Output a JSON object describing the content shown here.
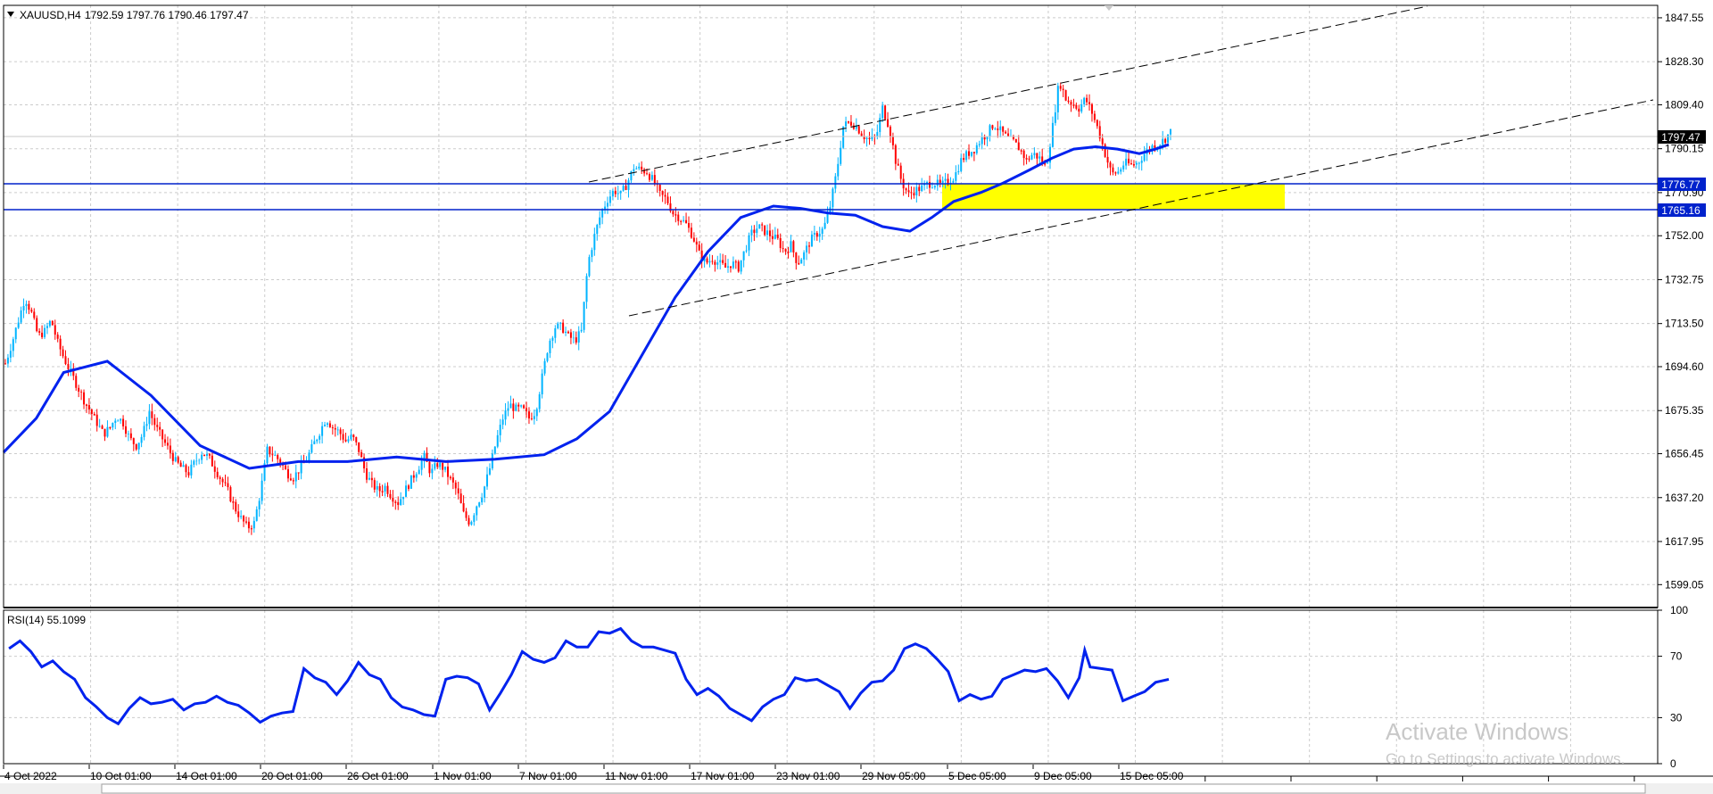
{
  "chart_data": [
    {
      "type": "candlestick",
      "symbol_label": "XAUUSD,H4",
      "ohlc_label": "1792.59 1797.76 1790.46 1797.47",
      "ylim": [
        1589,
        1853
      ],
      "y_ticks": [
        "1847.55",
        "1828.30",
        "1809.40",
        "1790.15",
        "1770.90",
        "1752.00",
        "1732.75",
        "1713.50",
        "1694.60",
        "1675.35",
        "1656.45",
        "1637.20",
        "1617.95",
        "1599.05"
      ],
      "x_ticks": [
        "4 Oct 2022",
        "10 Oct 01:00",
        "14 Oct 01:00",
        "20 Oct 01:00",
        "26 Oct 01:00",
        "1 Nov 01:00",
        "7 Nov 01:00",
        "11 Nov 01:00",
        "17 Nov 01:00",
        "23 Nov 01:00",
        "29 Nov 05:00",
        "5 Dec 05:00",
        "9 Dec 05:00",
        "15 Dec 05:00"
      ],
      "bars_total": 360,
      "price_path": [
        [
          0,
          1696
        ],
        [
          3,
          1705
        ],
        [
          6,
          1715
        ],
        [
          9,
          1725
        ],
        [
          12,
          1718
        ],
        [
          15,
          1708
        ],
        [
          18,
          1710
        ],
        [
          21,
          1715
        ],
        [
          24,
          1705
        ],
        [
          27,
          1698
        ],
        [
          30,
          1692
        ],
        [
          33,
          1686
        ],
        [
          36,
          1680
        ],
        [
          39,
          1675
        ],
        [
          42,
          1670
        ],
        [
          45,
          1665
        ],
        [
          48,
          1668
        ],
        [
          51,
          1673
        ],
        [
          54,
          1670
        ],
        [
          57,
          1663
        ],
        [
          60,
          1660
        ],
        [
          63,
          1665
        ],
        [
          66,
          1675
        ],
        [
          69,
          1668
        ],
        [
          72,
          1663
        ],
        [
          75,
          1658
        ],
        [
          78,
          1653
        ],
        [
          81,
          1650
        ],
        [
          84,
          1648
        ],
        [
          87,
          1653
        ],
        [
          90,
          1657
        ],
        [
          93,
          1655
        ],
        [
          96,
          1650
        ],
        [
          99,
          1645
        ],
        [
          102,
          1640
        ],
        [
          105,
          1633
        ],
        [
          108,
          1628
        ],
        [
          111,
          1624
        ],
        [
          114,
          1626
        ],
        [
          117,
          1640
        ],
        [
          120,
          1658
        ],
        [
          123,
          1656
        ],
        [
          126,
          1653
        ],
        [
          129,
          1648
        ],
        [
          132,
          1646
        ],
        [
          135,
          1650
        ],
        [
          138,
          1654
        ],
        [
          141,
          1660
        ],
        [
          144,
          1666
        ],
        [
          147,
          1672
        ],
        [
          150,
          1668
        ],
        [
          153,
          1666
        ],
        [
          156,
          1662
        ],
        [
          159,
          1664
        ],
        [
          162,
          1658
        ],
        [
          165,
          1648
        ],
        [
          168,
          1643
        ],
        [
          171,
          1640
        ],
        [
          174,
          1642
        ],
        [
          177,
          1638
        ],
        [
          180,
          1635
        ],
        [
          183,
          1640
        ],
        [
          186,
          1645
        ],
        [
          189,
          1650
        ],
        [
          192,
          1655
        ],
        [
          195,
          1648
        ],
        [
          198,
          1652
        ],
        [
          201,
          1650
        ],
        [
          204,
          1645
        ],
        [
          207,
          1640
        ],
        [
          210,
          1630
        ],
        [
          213,
          1626
        ],
        [
          216,
          1634
        ],
        [
          219,
          1640
        ],
        [
          222,
          1650
        ],
        [
          225,
          1662
        ],
        [
          228,
          1672
        ],
        [
          231,
          1678
        ],
        [
          234,
          1676
        ],
        [
          237,
          1676
        ],
        [
          240,
          1672
        ],
        [
          243,
          1675
        ],
        [
          246,
          1690
        ],
        [
          249,
          1705
        ],
        [
          252,
          1712
        ],
        [
          255,
          1712
        ],
        [
          258,
          1708
        ],
        [
          261,
          1706
        ],
        [
          264,
          1710
        ],
        [
          267,
          1740
        ],
        [
          270,
          1752
        ],
        [
          273,
          1762
        ],
        [
          276,
          1768
        ],
        [
          279,
          1772
        ],
        [
          282,
          1770
        ],
        [
          285,
          1775
        ],
        [
          288,
          1782
        ],
        [
          291,
          1781
        ],
        [
          294,
          1780
        ],
        [
          297,
          1776
        ],
        [
          300,
          1770
        ],
        [
          303,
          1768
        ],
        [
          306,
          1762
        ],
        [
          309,
          1760
        ],
        [
          312,
          1757
        ],
        [
          315,
          1752
        ],
        [
          318,
          1744
        ],
        [
          321,
          1740
        ],
        [
          324,
          1742
        ],
        [
          327,
          1740
        ],
        [
          330,
          1738
        ],
        [
          333,
          1740
        ],
        [
          336,
          1738
        ],
        [
          339,
          1746
        ],
        [
          342,
          1753
        ],
        [
          345,
          1756
        ],
        [
          348,
          1754
        ],
        [
          351,
          1752
        ],
        [
          354,
          1750
        ],
        [
          357,
          1745
        ],
        [
          360,
          1748
        ],
        [
          363,
          1740
        ],
        [
          366,
          1744
        ],
        [
          369,
          1750
        ],
        [
          372,
          1753
        ],
        [
          375,
          1755
        ],
        [
          378,
          1765
        ],
        [
          381,
          1780
        ],
        [
          384,
          1800
        ],
        [
          387,
          1802
        ],
        [
          390,
          1800
        ],
        [
          393,
          1796
        ],
        [
          396,
          1794
        ],
        [
          399,
          1795
        ],
        [
          402,
          1808
        ],
        [
          405,
          1800
        ],
        [
          408,
          1785
        ],
        [
          411,
          1775
        ],
        [
          414,
          1770
        ],
        [
          417,
          1772
        ],
        [
          420,
          1773
        ],
        [
          423,
          1775
        ],
        [
          426,
          1775
        ],
        [
          429,
          1774
        ],
        [
          432,
          1776
        ],
        [
          435,
          1778
        ],
        [
          438,
          1785
        ],
        [
          441,
          1788
        ],
        [
          444,
          1790
        ],
        [
          447,
          1794
        ],
        [
          450,
          1797
        ],
        [
          453,
          1801
        ],
        [
          456,
          1798
        ],
        [
          459,
          1795
        ],
        [
          462,
          1793
        ],
        [
          465,
          1790
        ],
        [
          468,
          1785
        ],
        [
          471,
          1788
        ],
        [
          474,
          1786
        ],
        [
          477,
          1782
        ],
        [
          480,
          1800
        ],
        [
          483,
          1820
        ],
        [
          486,
          1812
        ],
        [
          489,
          1810
        ],
        [
          492,
          1808
        ],
        [
          495,
          1812
        ],
        [
          498,
          1806
        ],
        [
          501,
          1798
        ],
        [
          504,
          1788
        ],
        [
          507,
          1779
        ],
        [
          510,
          1780
        ],
        [
          513,
          1784
        ],
        [
          516,
          1783
        ],
        [
          519,
          1784
        ],
        [
          522,
          1788
        ],
        [
          525,
          1791
        ],
        [
          528,
          1792
        ],
        [
          531,
          1794
        ],
        [
          534,
          1797.47
        ]
      ],
      "ma_path": [
        [
          0,
          1657
        ],
        [
          30,
          1672
        ],
        [
          55,
          1692
        ],
        [
          95,
          1697
        ],
        [
          135,
          1682
        ],
        [
          180,
          1660
        ],
        [
          225,
          1650
        ],
        [
          270,
          1653
        ],
        [
          315,
          1653
        ],
        [
          360,
          1655
        ],
        [
          405,
          1653
        ],
        [
          450,
          1654
        ],
        [
          495,
          1656
        ],
        [
          525,
          1663
        ],
        [
          555,
          1675
        ],
        [
          585,
          1700
        ],
        [
          615,
          1725
        ],
        [
          645,
          1745
        ],
        [
          675,
          1760
        ],
        [
          705,
          1765
        ],
        [
          730,
          1764
        ],
        [
          755,
          1762
        ],
        [
          780,
          1761
        ],
        [
          805,
          1756
        ],
        [
          830,
          1754
        ],
        [
          850,
          1760
        ],
        [
          870,
          1767
        ],
        [
          895,
          1771
        ],
        [
          915,
          1775
        ],
        [
          940,
          1781
        ],
        [
          960,
          1786
        ],
        [
          980,
          1790
        ],
        [
          1000,
          1791
        ],
        [
          1020,
          1790
        ],
        [
          1040,
          1788
        ],
        [
          1055,
          1790
        ],
        [
          1067,
          1792
        ]
      ],
      "horizontal_levels": [
        1776.77,
        1765.16
      ],
      "level_labels": [
        "1776.77",
        "1765.16"
      ],
      "current_price_label": "1797.47",
      "highlight_zone": {
        "from_price": 1765.16,
        "to_price": 1776.77,
        "color": "#ffff00"
      },
      "trend_lines": [
        {
          "from": [
            540,
            1777
          ],
          "to": [
            1305,
            1853
          ]
        },
        {
          "from": [
            575,
            1727
          ],
          "to": [
            1512,
            1810
          ]
        }
      ],
      "colors": {
        "bull": "#00b4ff",
        "bear": "#ff0000",
        "ma": "#0022ee",
        "level": "#0022cc",
        "grid": "#c8c8c8"
      }
    },
    {
      "type": "line",
      "indicator_label": "RSI(14) 55.1099",
      "ylim": [
        0,
        100
      ],
      "y_ticks": [
        "100",
        "70",
        "30",
        "0"
      ],
      "rsi_path": [
        [
          5,
          75
        ],
        [
          15,
          80
        ],
        [
          25,
          73
        ],
        [
          35,
          63
        ],
        [
          45,
          67
        ],
        [
          55,
          60
        ],
        [
          65,
          55
        ],
        [
          75,
          43
        ],
        [
          85,
          37
        ],
        [
          95,
          30
        ],
        [
          105,
          26
        ],
        [
          115,
          36
        ],
        [
          125,
          43
        ],
        [
          135,
          39
        ],
        [
          145,
          40
        ],
        [
          155,
          42
        ],
        [
          165,
          35
        ],
        [
          175,
          39
        ],
        [
          185,
          40
        ],
        [
          195,
          44
        ],
        [
          205,
          40
        ],
        [
          215,
          38
        ],
        [
          225,
          33
        ],
        [
          235,
          27
        ],
        [
          245,
          31
        ],
        [
          255,
          33
        ],
        [
          265,
          34
        ],
        [
          275,
          62
        ],
        [
          285,
          56
        ],
        [
          295,
          53
        ],
        [
          305,
          45
        ],
        [
          315,
          54
        ],
        [
          325,
          66
        ],
        [
          335,
          58
        ],
        [
          345,
          55
        ],
        [
          355,
          43
        ],
        [
          365,
          37
        ],
        [
          375,
          35
        ],
        [
          385,
          32
        ],
        [
          395,
          31
        ],
        [
          405,
          55
        ],
        [
          415,
          57
        ],
        [
          425,
          56
        ],
        [
          435,
          52
        ],
        [
          445,
          35
        ],
        [
          455,
          46
        ],
        [
          465,
          58
        ],
        [
          475,
          73
        ],
        [
          485,
          68
        ],
        [
          495,
          66
        ],
        [
          505,
          69
        ],
        [
          515,
          80
        ],
        [
          525,
          76
        ],
        [
          535,
          76
        ],
        [
          545,
          86
        ],
        [
          555,
          85
        ],
        [
          565,
          88
        ],
        [
          575,
          80
        ],
        [
          585,
          76
        ],
        [
          595,
          76
        ],
        [
          605,
          74
        ],
        [
          615,
          72
        ],
        [
          625,
          55
        ],
        [
          635,
          45
        ],
        [
          645,
          49
        ],
        [
          655,
          44
        ],
        [
          665,
          36
        ],
        [
          675,
          32
        ],
        [
          685,
          28
        ],
        [
          695,
          37
        ],
        [
          705,
          42
        ],
        [
          715,
          45
        ],
        [
          725,
          56
        ],
        [
          735,
          54
        ],
        [
          745,
          55
        ],
        [
          755,
          51
        ],
        [
          765,
          47
        ],
        [
          775,
          36
        ],
        [
          785,
          46
        ],
        [
          795,
          53
        ],
        [
          805,
          54
        ],
        [
          815,
          61
        ],
        [
          825,
          75
        ],
        [
          835,
          78
        ],
        [
          845,
          75
        ],
        [
          855,
          68
        ],
        [
          865,
          60
        ],
        [
          875,
          41
        ],
        [
          885,
          45
        ],
        [
          895,
          42
        ],
        [
          905,
          44
        ],
        [
          915,
          55
        ],
        [
          925,
          58
        ],
        [
          935,
          61
        ],
        [
          945,
          60
        ],
        [
          955,
          62
        ],
        [
          965,
          54
        ],
        [
          975,
          43
        ],
        [
          985,
          56
        ],
        [
          990,
          74
        ],
        [
          995,
          63
        ],
        [
          1005,
          62
        ],
        [
          1015,
          61
        ],
        [
          1025,
          41
        ],
        [
          1035,
          44
        ],
        [
          1045,
          47
        ],
        [
          1055,
          53
        ],
        [
          1067,
          55
        ]
      ]
    }
  ],
  "watermark": {
    "title": "Activate Windows",
    "subtitle": "Go to Settings to activate Windows."
  }
}
